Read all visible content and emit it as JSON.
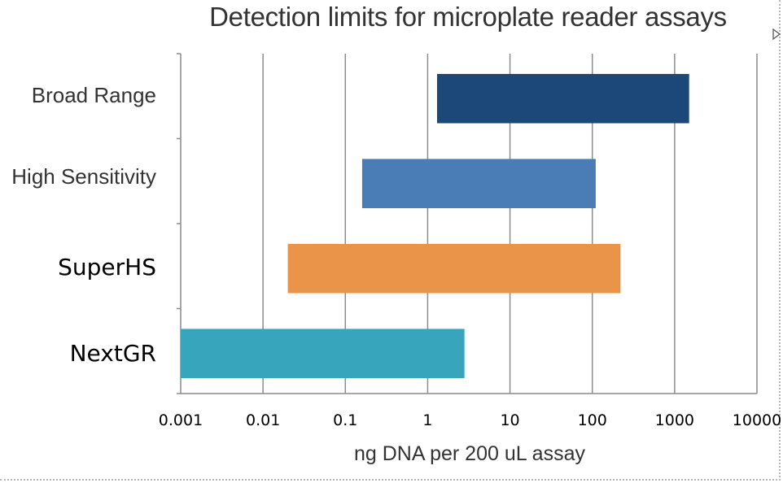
{
  "chart_data": {
    "type": "bar",
    "orientation": "horizontal",
    "subtype": "floating-range",
    "title": "Detection limits for microplate reader assays",
    "xlabel": "ng DNA per 200 uL assay",
    "ylabel": "",
    "xscale": "log",
    "xlim": [
      0.001,
      10000
    ],
    "x_ticks": [
      "0.001",
      "0.01",
      "0.1",
      "1",
      "10",
      "100",
      "1000",
      "10000"
    ],
    "grid": "vertical",
    "legend": "none",
    "categories": [
      "Broad Range",
      "High Sensitivity",
      "SuperHS",
      "NextGR"
    ],
    "ranges": [
      {
        "category": "Broad Range",
        "low": 1.3,
        "high": 1500,
        "color": "#1c4879"
      },
      {
        "category": "High Sensitivity",
        "low": 0.16,
        "high": 110,
        "color": "#4a7db5"
      },
      {
        "category": "SuperHS",
        "low": 0.02,
        "high": 220,
        "color": "#ea944a"
      },
      {
        "category": "NextGR",
        "low": 0.001,
        "high": 2.8,
        "color": "#37a6bd"
      }
    ]
  }
}
